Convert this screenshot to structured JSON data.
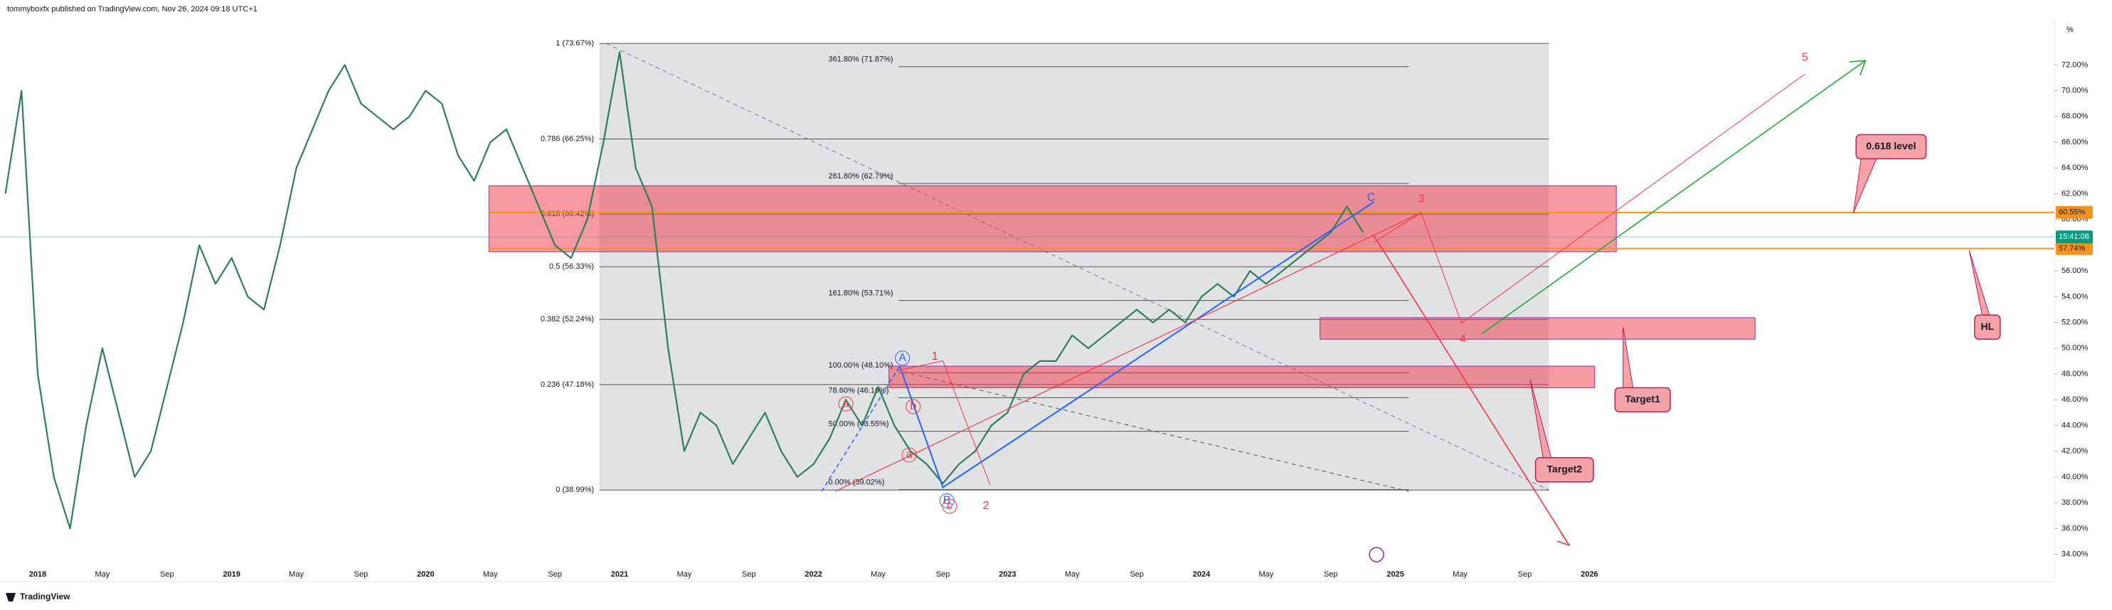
{
  "header": "tommyboxfx published on TradingView.com, Nov 26, 2024 09:18 UTC+1",
  "footer": "TradingView",
  "axis_unit": "%",
  "chart_data": {
    "type": "line",
    "color": "#2e7d5b",
    "categories": [
      null,
      null,
      "2018",
      null,
      null,
      null,
      "May",
      null,
      null,
      null,
      "Sep",
      null,
      null,
      null,
      "2019",
      null,
      null,
      null,
      "May",
      null,
      null,
      null,
      "Sep",
      null,
      null,
      null,
      "2020",
      null,
      null,
      null,
      "May",
      null,
      null,
      null,
      "Sep",
      null,
      null,
      null,
      "2021",
      null,
      null,
      null,
      "May",
      null,
      null,
      null,
      "Sep",
      null,
      null,
      null,
      "2022",
      null,
      null,
      null,
      "May",
      null,
      null,
      null,
      "Sep",
      null,
      null,
      null,
      "2023",
      null,
      null,
      null,
      "May",
      null,
      null,
      null,
      "Sep",
      null,
      null,
      null,
      "2024",
      null,
      null,
      null,
      "May",
      null,
      null,
      null,
      "Sep",
      null,
      null,
      null,
      "2025",
      null,
      null,
      null,
      "May",
      null,
      null,
      null,
      "Sep",
      null,
      null,
      null,
      "2026",
      null,
      null
    ],
    "values": [
      62,
      70,
      48,
      40,
      36,
      44,
      50,
      45,
      40,
      42,
      47,
      52,
      58,
      55,
      57,
      54,
      53,
      58,
      64,
      67,
      70,
      72,
      69,
      68,
      67,
      68,
      70,
      69,
      65,
      63,
      66,
      67,
      64,
      61,
      58,
      57,
      60,
      66,
      73,
      64,
      61,
      50,
      42,
      45,
      44,
      41,
      43,
      45,
      42,
      40,
      41,
      43,
      46,
      44,
      47,
      44,
      42,
      41,
      39.5,
      41,
      42,
      44,
      45,
      48,
      49,
      49,
      51,
      50,
      51,
      52,
      53,
      52,
      53,
      52,
      54,
      55,
      54,
      56,
      55,
      56,
      57,
      58,
      59,
      61,
      59,
      null,
      null,
      null,
      null,
      null,
      null,
      null,
      null,
      null,
      null,
      null,
      null,
      null,
      null,
      null,
      null
    ],
    "ylim": [
      32.1,
      75.5
    ],
    "yticks": [
      {
        "value": 34,
        "label": "34.00%"
      },
      {
        "value": 36,
        "label": "36.00%"
      },
      {
        "value": 38,
        "label": "38.00%"
      },
      {
        "value": 40,
        "label": "40.00%"
      },
      {
        "value": 42,
        "label": "42.00%"
      },
      {
        "value": 44,
        "label": "44.00%"
      },
      {
        "value": 46,
        "label": "46.00%"
      },
      {
        "value": 48,
        "label": "48.00%"
      },
      {
        "value": 50,
        "label": "50.00%"
      },
      {
        "value": 52,
        "label": "52.00%"
      },
      {
        "value": 54,
        "label": "54.00%"
      },
      {
        "value": 56,
        "label": "56.00%"
      },
      {
        "value": 58,
        "label": "58.00%"
      },
      {
        "value": 60,
        "label": "60.00%"
      },
      {
        "value": 62,
        "label": "62.00%"
      },
      {
        "value": 64,
        "label": "64.00%"
      },
      {
        "value": 66,
        "label": "66.00%"
      },
      {
        "value": 68,
        "label": "68.00%"
      },
      {
        "value": 70,
        "label": "70.00%"
      },
      {
        "value": 72,
        "label": "72.00%"
      }
    ],
    "fib_levels": [
      {
        "value": 73.67,
        "label": "1 (73.67%)"
      },
      {
        "value": 66.25,
        "label": "0.786 (66.25%)"
      },
      {
        "value": 60.42,
        "label": "0.618 (60.42%)"
      },
      {
        "value": 56.33,
        "label": "0.5 (56.33%)"
      },
      {
        "value": 52.24,
        "label": "0.382 (52.24%)"
      },
      {
        "value": 47.18,
        "label": "0.236 (47.18%)"
      },
      {
        "value": 38.99,
        "label": "0 (38.99%)"
      }
    ],
    "fib_extensions": [
      {
        "value": 71.87,
        "label": "361.80% (71.87%)"
      },
      {
        "value": 62.79,
        "label": "261.80% (62.79%)"
      },
      {
        "value": 53.71,
        "label": "161.80% (53.71%)"
      },
      {
        "value": 48.1,
        "label": "100.00% (48.10%)"
      },
      {
        "value": 46.16,
        "label": "78.60% (46.16%)"
      },
      {
        "value": 43.55,
        "label": "50.00% (43.55%)"
      },
      {
        "value": 39.02,
        "label": "0.00% (39.02%)"
      }
    ],
    "price_tags": [
      {
        "value": 60.55,
        "label": "60.55%"
      },
      {
        "value": 57.74,
        "label": "57.74%"
      }
    ],
    "countdown": "15:41:08",
    "wave_labels": [
      "5",
      "3",
      "4",
      "1",
      "2",
      "C",
      "A",
      "B",
      "c",
      "a",
      "a",
      "b"
    ],
    "callouts": [
      "0.618 level",
      "HL",
      "Target1",
      "Target2"
    ]
  }
}
